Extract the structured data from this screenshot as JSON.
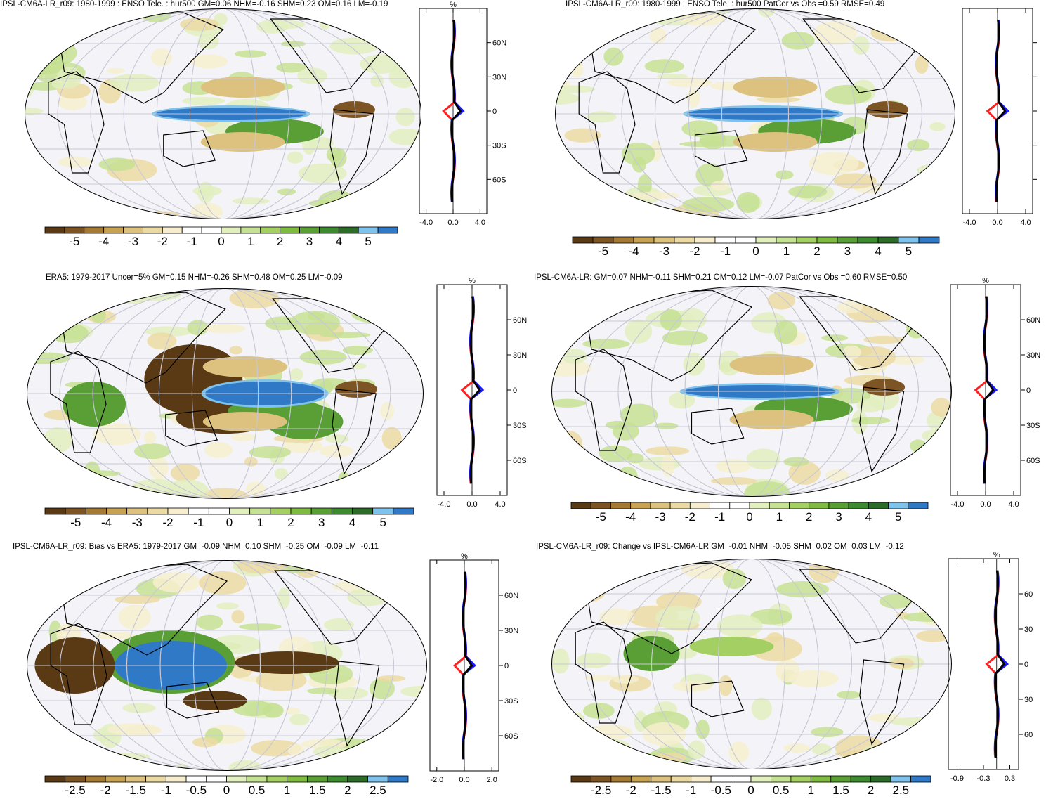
{
  "panels": [
    {
      "id": "model-enso",
      "title": "IPSL-CM6A-LR_r09: 1980-1999 : ENSO Tele. : hur500 GM=0.06 NHM=-0.16 SHM=0.23 OM=0.16 LM=-0.19",
      "profile": {
        "unit": "%",
        "lat_labels": [
          "60N",
          "30N",
          "0",
          "30S",
          "60S"
        ],
        "x_ticks": [
          "-4.0",
          "0.0",
          "4.0"
        ],
        "x_range": [
          -5,
          5
        ]
      },
      "colorbar": {
        "labels": [
          "-5",
          "-4",
          "-3",
          "-2",
          "-1",
          "0",
          "1",
          "2",
          "3",
          "4",
          "5"
        ]
      }
    },
    {
      "id": "model-patcor",
      "title": "IPSL-CM6A-LR_r09: 1980-1999 : ENSO Tele. : hur500 PatCor vs Obs =0.59 RMSE=0.49",
      "profile": {
        "unit": "",
        "lat_labels": [],
        "x_ticks": [
          "-4.0",
          "0.0",
          "4.0"
        ],
        "x_range": [
          -5,
          5
        ]
      },
      "colorbar": {
        "labels": [
          "-5",
          "-4",
          "-3",
          "-2",
          "-1",
          "0",
          "1",
          "2",
          "3",
          "4",
          "5"
        ]
      }
    },
    {
      "id": "era5",
      "title": "ERA5: 1979-2017 Uncer=5% GM=0.15 NHM=-0.26 SHM=0.48 OM=0.25 LM=-0.09",
      "profile": {
        "unit": "%",
        "lat_labels": [
          "60N",
          "30N",
          "0",
          "30S",
          "60S"
        ],
        "x_ticks": [
          "-4.0",
          "0.0",
          "4.0"
        ],
        "x_range": [
          -5,
          5
        ]
      },
      "colorbar": {
        "labels": [
          "-5",
          "-4",
          "-3",
          "-2",
          "-1",
          "0",
          "1",
          "2",
          "3",
          "4",
          "5"
        ]
      }
    },
    {
      "id": "ensemble",
      "title": "IPSL-CM6A-LR: GM=0.07 NHM=-0.11 SHM=0.21 OM=0.12 LM=-0.07 PatCor vs Obs =0.60 RMSE=0.50",
      "profile": {
        "unit": "%",
        "lat_labels": [
          "60N",
          "30N",
          "0",
          "30S",
          "60S"
        ],
        "x_ticks": [
          "-4.0",
          "0.0",
          "4.0"
        ],
        "x_range": [
          -5,
          5
        ]
      },
      "colorbar": {
        "labels": [
          "-5",
          "-4",
          "-3",
          "-2",
          "-1",
          "0",
          "1",
          "2",
          "3",
          "4",
          "5"
        ]
      }
    },
    {
      "id": "bias",
      "title": "IPSL-CM6A-LR_r09: Bias vs ERA5: 1979-2017 GM=-0.09 NHM=0.10 SHM=-0.25 OM=-0.09 LM=-0.11",
      "profile": {
        "unit": "%",
        "lat_labels": [
          "60N",
          "30N",
          "0",
          "30S",
          "60S"
        ],
        "x_ticks": [
          "-2.0",
          "0.0",
          "2.0"
        ],
        "x_range": [
          -2.5,
          2.5
        ]
      },
      "colorbar": {
        "labels": [
          "-2.5",
          "-2",
          "-1.5",
          "-1",
          "-0.5",
          "0",
          "0.5",
          "1",
          "1.5",
          "2",
          "2.5"
        ]
      }
    },
    {
      "id": "change",
      "title": "IPSL-CM6A-LR_r09: Change vs IPSL-CM6A-LR GM=-0.01 NHM=-0.05 SHM=0.02 OM=0.03 LM=-0.12",
      "profile": {
        "unit": "%",
        "lat_labels": [
          "60",
          "30",
          "0",
          "30",
          "60"
        ],
        "x_ticks": [
          "-0.9",
          "-0.3",
          "0.3"
        ],
        "x_range": [
          -1.1,
          0.5
        ]
      },
      "colorbar": {
        "labels": [
          "-2.5",
          "-2",
          "-1.5",
          "-1",
          "-0.5",
          "0",
          "0.5",
          "1",
          "1.5",
          "2",
          "2.5"
        ]
      }
    }
  ],
  "colors": {
    "scale": [
      "#5a3a14",
      "#7d5424",
      "#a57a35",
      "#c8a253",
      "#dcc27e",
      "#ecdaa5",
      "#f6eece",
      "#ffffff",
      "#ffffff",
      "#e2efbf",
      "#c5e193",
      "#a3cf63",
      "#7fba41",
      "#5a9e36",
      "#3d8a30",
      "#2c6b28",
      "#7fc2eb",
      "#2f79c6"
    ],
    "land": "#000000",
    "profile_red": "#ff2020",
    "profile_blue": "#1a1aff",
    "profile_black": "#000000"
  }
}
